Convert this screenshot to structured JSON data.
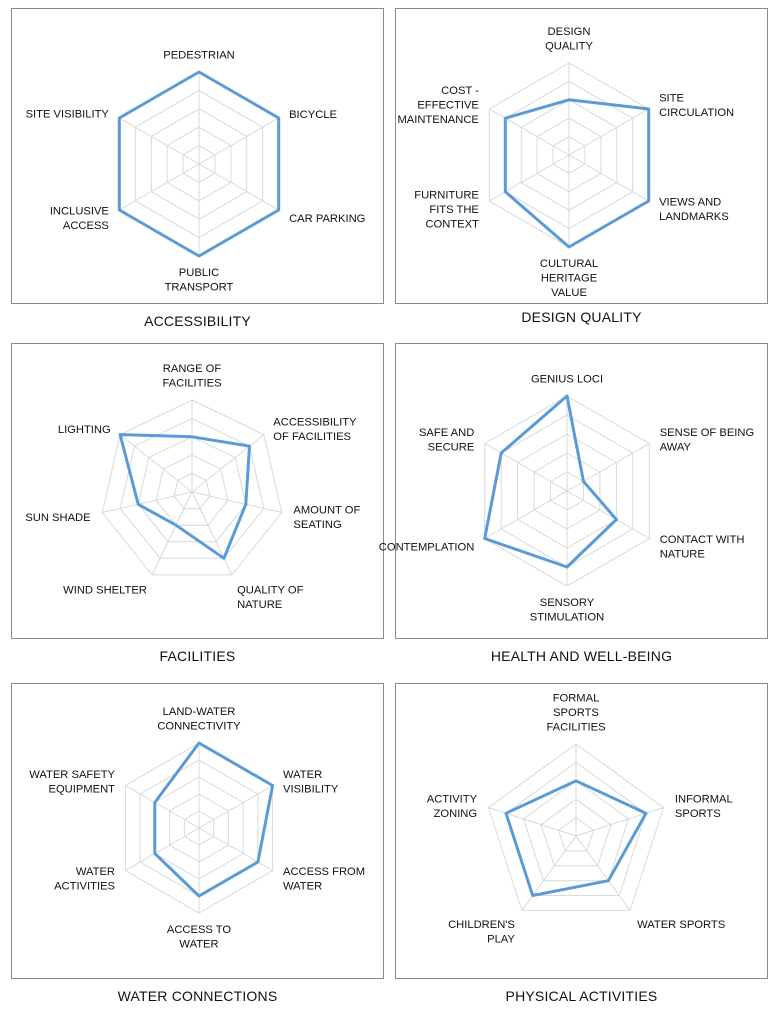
{
  "chart_data": [
    {
      "type": "radar",
      "title": "ACCESSIBILITY",
      "rmax": 5,
      "grid_levels": 5,
      "categories": [
        "PEDESTRIAN",
        "BICYCLE",
        "CAR PARKING",
        "PUBLIC TRANSPORT",
        "INCLUSIVE ACCESS",
        "SITE VISIBILITY"
      ],
      "values": [
        5,
        5,
        5,
        5,
        5,
        5
      ],
      "series_color": "#5b9bd5"
    },
    {
      "type": "radar",
      "title": "DESIGN QUALITY",
      "rmax": 5,
      "grid_levels": 5,
      "categories": [
        "DESIGN QUALITY",
        "SITE CIRCULATION",
        "VIEWS AND LANDMARKS",
        "CULTURAL HERITAGE VALUE",
        "FURNITURE FITS THE CONTEXT",
        "COST - EFFECTIVE MAINTENANCE"
      ],
      "values": [
        3,
        5,
        5,
        5,
        4,
        4
      ],
      "series_color": "#5b9bd5"
    },
    {
      "type": "radar",
      "title": "FACILITIES",
      "rmax": 5,
      "grid_levels": 5,
      "categories": [
        "RANGE OF FACILITIES",
        "ACCESSIBILITY OF FACILITIES",
        "AMOUNT OF SEATING",
        "QUALITY OF NATURE",
        "WIND SHELTER",
        "SUN SHADE",
        "LIGHTING"
      ],
      "values": [
        3,
        4,
        3,
        4,
        2,
        3,
        5
      ],
      "series_color": "#5b9bd5"
    },
    {
      "type": "radar",
      "title": "HEALTH AND WELL-BEING",
      "rmax": 5,
      "grid_levels": 5,
      "categories": [
        "GENIUS LOCI",
        "SENSE OF BEING AWAY",
        "CONTACT WITH NATURE",
        "SENSORY STIMULATION",
        "CONTEMPLATION",
        "SAFE AND SECURE"
      ],
      "values": [
        5,
        1,
        3,
        4,
        5,
        4
      ],
      "series_color": "#5b9bd5"
    },
    {
      "type": "radar",
      "title": "WATER CONNECTIONS",
      "rmax": 5,
      "grid_levels": 5,
      "categories": [
        "LAND-WATER CONNECTIVITY",
        "WATER VISIBILITY",
        "ACCESS FROM WATER",
        "ACCESS TO WATER",
        "WATER ACTIVITIES",
        "WATER SAFETY EQUIPMENT"
      ],
      "values": [
        5,
        5,
        4,
        4,
        3,
        3
      ],
      "series_color": "#5b9bd5"
    },
    {
      "type": "radar",
      "title": "PHYSICAL ACTIVITIES",
      "rmax": 5,
      "grid_levels": 5,
      "categories": [
        "FORMAL SPORTS FACILITIES",
        "INFORMAL SPORTS",
        "WATER SPORTS",
        "CHILDREN'S PLAY",
        "ACTIVITY ZONING"
      ],
      "values": [
        3,
        4,
        3,
        4,
        4
      ],
      "series_color": "#5b9bd5"
    }
  ]
}
